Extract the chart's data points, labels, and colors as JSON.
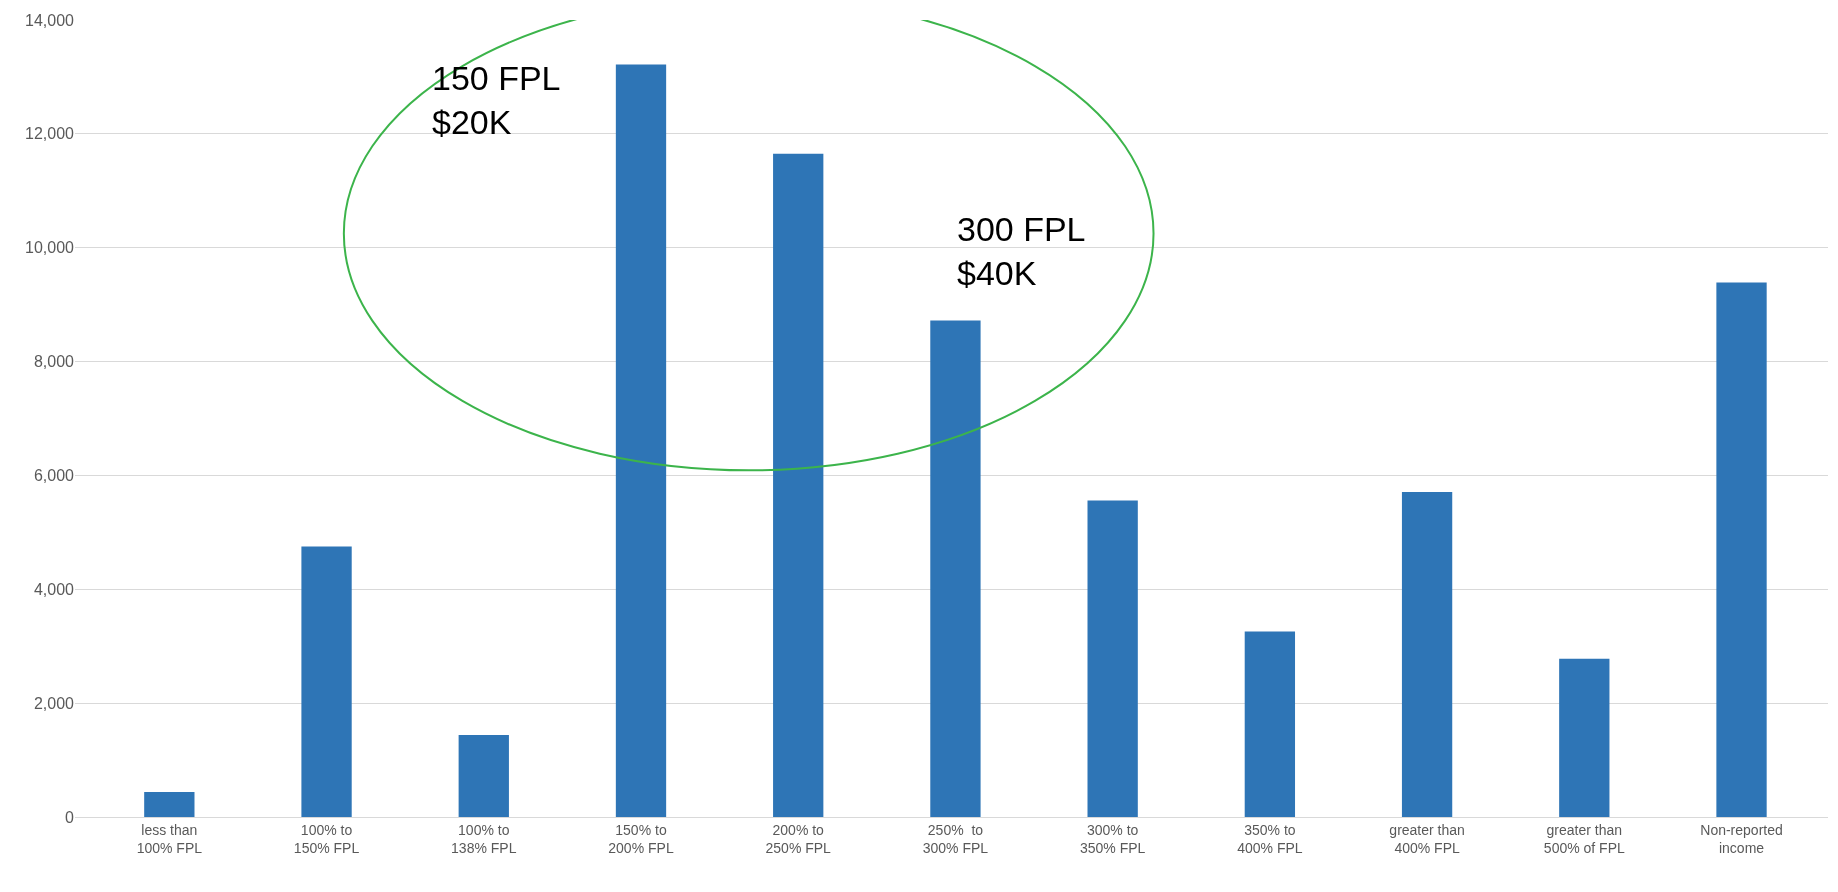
{
  "chart_data": {
    "type": "bar",
    "categories": [
      "less than 100% FPL",
      "100% to 150% FPL",
      "100% to 138% FPL",
      "150% to 200% FPL",
      "200% to 250% FPL",
      "250%  to 300% FPL",
      "300% to 350% FPL",
      "350% to 400% FPL",
      "greater than 400% FPL",
      "greater than 500% of FPL",
      "Non-reported income"
    ],
    "values": [
      440,
      4750,
      1440,
      13220,
      11650,
      8720,
      5560,
      3260,
      5710,
      2780,
      9390
    ],
    "color": "#2e75b6",
    "ylim": [
      0,
      14000
    ],
    "yticks": [
      {
        "value": 0,
        "label": "0"
      },
      {
        "value": 2000,
        "label": "2,000"
      },
      {
        "value": 4000,
        "label": "4,000"
      },
      {
        "value": 6000,
        "label": "6,000"
      },
      {
        "value": 8000,
        "label": "8,000"
      },
      {
        "value": 10000,
        "label": "10,000"
      },
      {
        "value": 12000,
        "label": "12,000"
      },
      {
        "value": 14000,
        "label": "14,000"
      }
    ],
    "grid": "y",
    "annotations": [
      "150 FPL\n$20K",
      "300 FPL\n$40K"
    ]
  }
}
